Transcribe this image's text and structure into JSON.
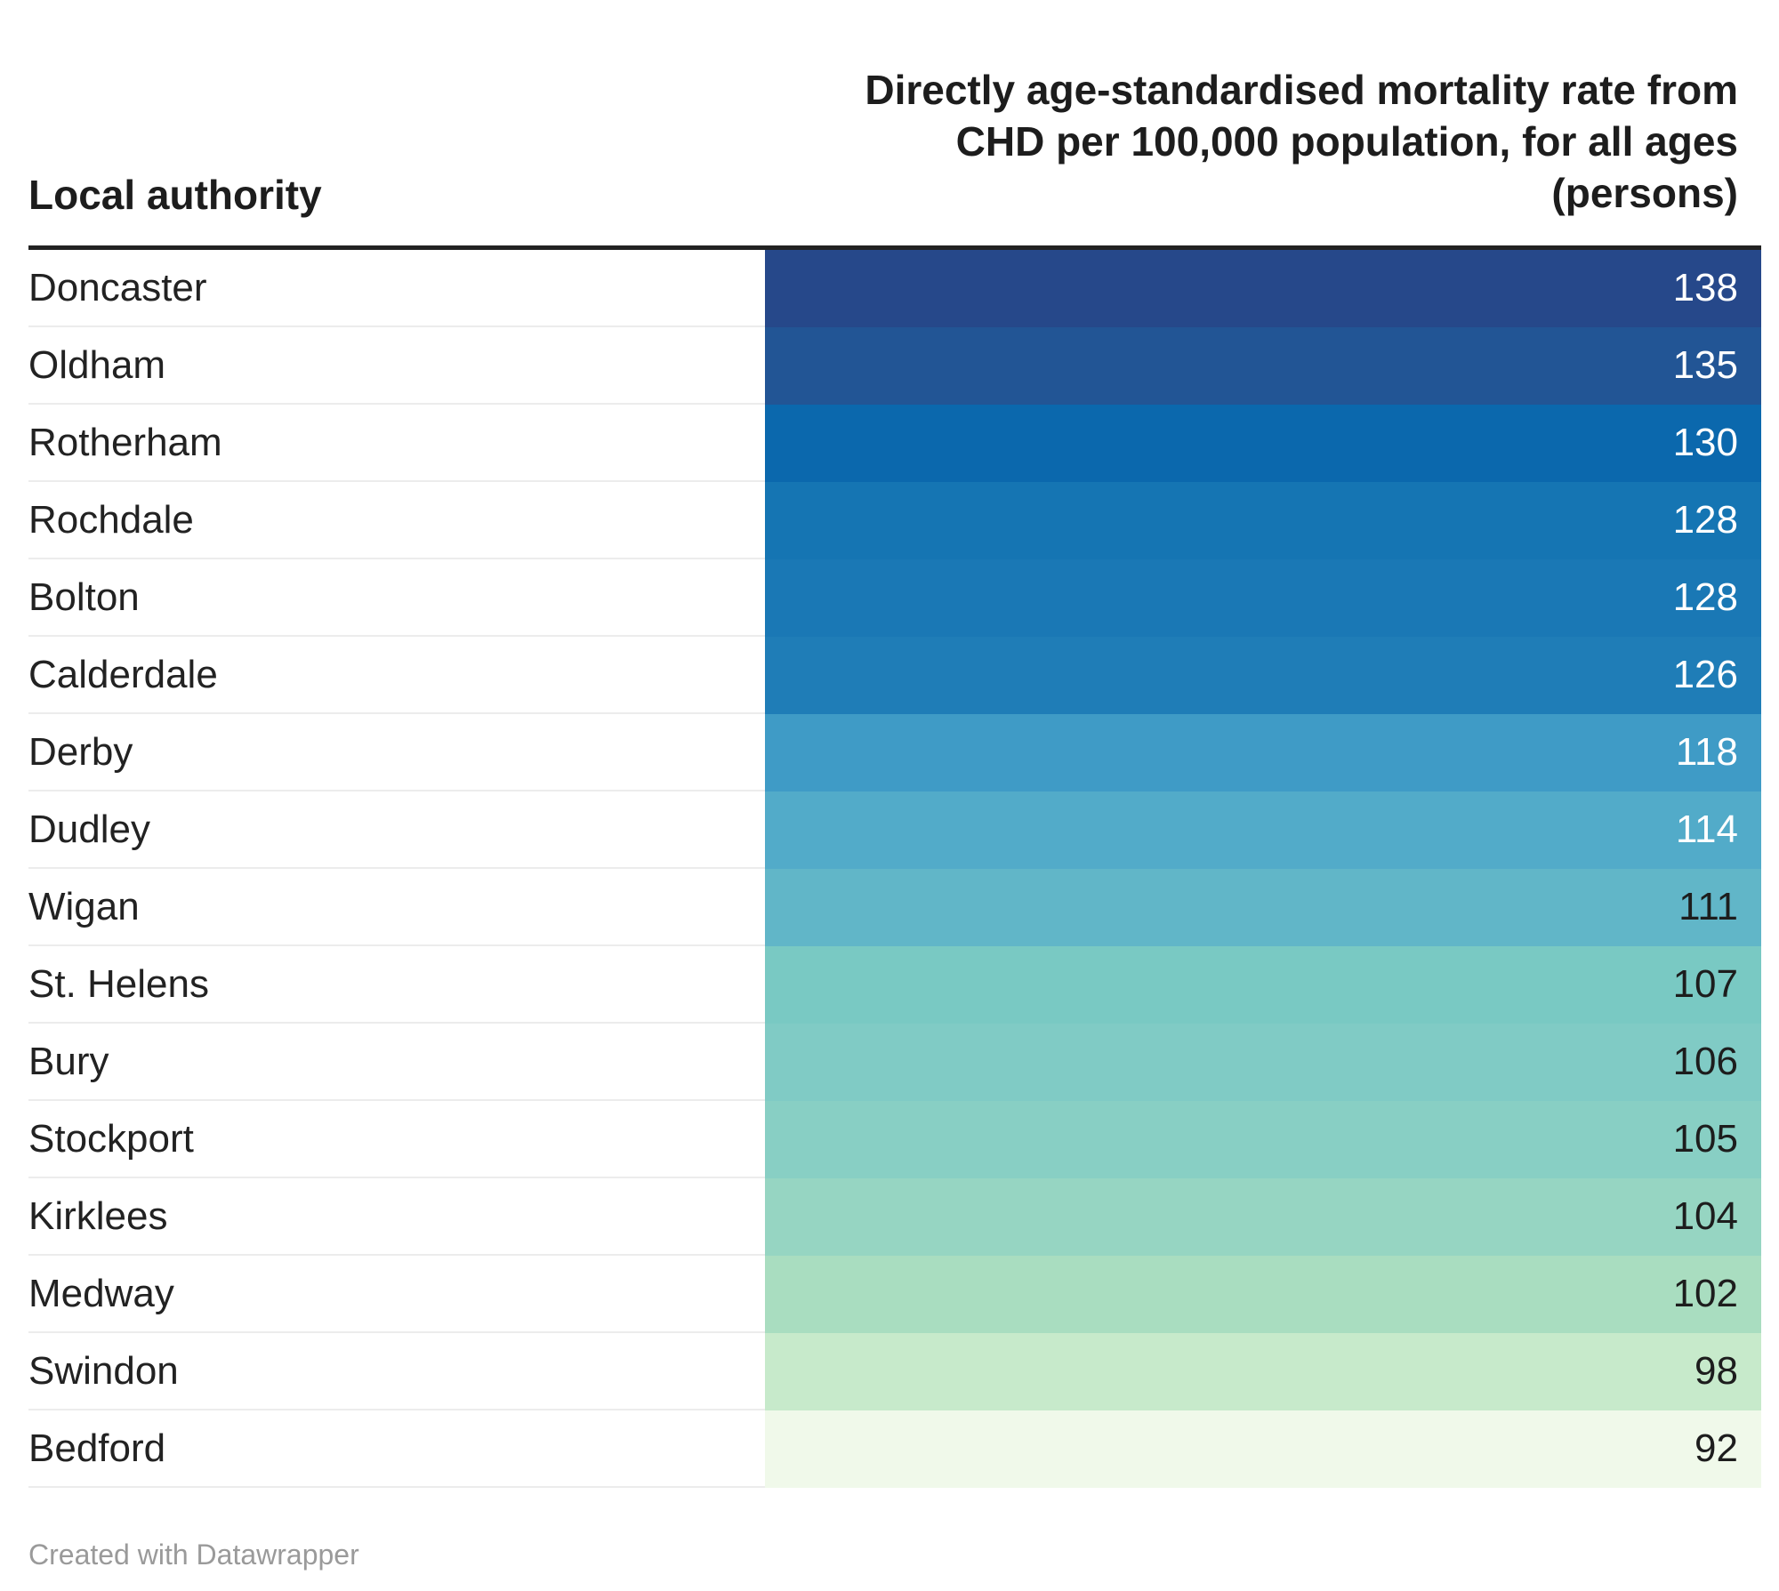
{
  "chart_data": {
    "type": "table",
    "title": "",
    "columns": [
      "Local authority",
      "Directly age-standardised mortality rate from CHD per 100,000 population, for all ages (persons)"
    ],
    "header_lines": [
      "Directly age-standardised mortality rate from",
      "CHD per 100,000 population, for all ages",
      "(persons)"
    ],
    "categories": [
      "Doncaster",
      "Oldham",
      "Rotherham",
      "Rochdale",
      "Bolton",
      "Calderdale",
      "Derby",
      "Dudley",
      "Wigan",
      "St. Helens",
      "Bury",
      "Stockport",
      "Kirklees",
      "Medway",
      "Swindon",
      "Bedford"
    ],
    "values": [
      138,
      135,
      130,
      128,
      128,
      126,
      118,
      114,
      111,
      107,
      106,
      105,
      104,
      102,
      98,
      92
    ],
    "colors": [
      "#26488a",
      "#225595",
      "#0b68ad",
      "#1575b3",
      "#1a78b5",
      "#1f7db7",
      "#3f9bc6",
      "#52abc9",
      "#61b6c8",
      "#79c9c3",
      "#80cbc5",
      "#88cfc4",
      "#96d5c2",
      "#a9ddc0",
      "#c7eacb",
      "#f0f9ea"
    ],
    "text_colors": [
      "#ffffff",
      "#ffffff",
      "#ffffff",
      "#ffffff",
      "#ffffff",
      "#ffffff",
      "#ffffff",
      "#ffffff",
      "#1d1d1d",
      "#1d1d1d",
      "#1d1d1d",
      "#1d1d1d",
      "#1d1d1d",
      "#1d1d1d",
      "#1d1d1d",
      "#1d1d1d"
    ]
  },
  "footer": {
    "credit": "Created with Datawrapper"
  }
}
